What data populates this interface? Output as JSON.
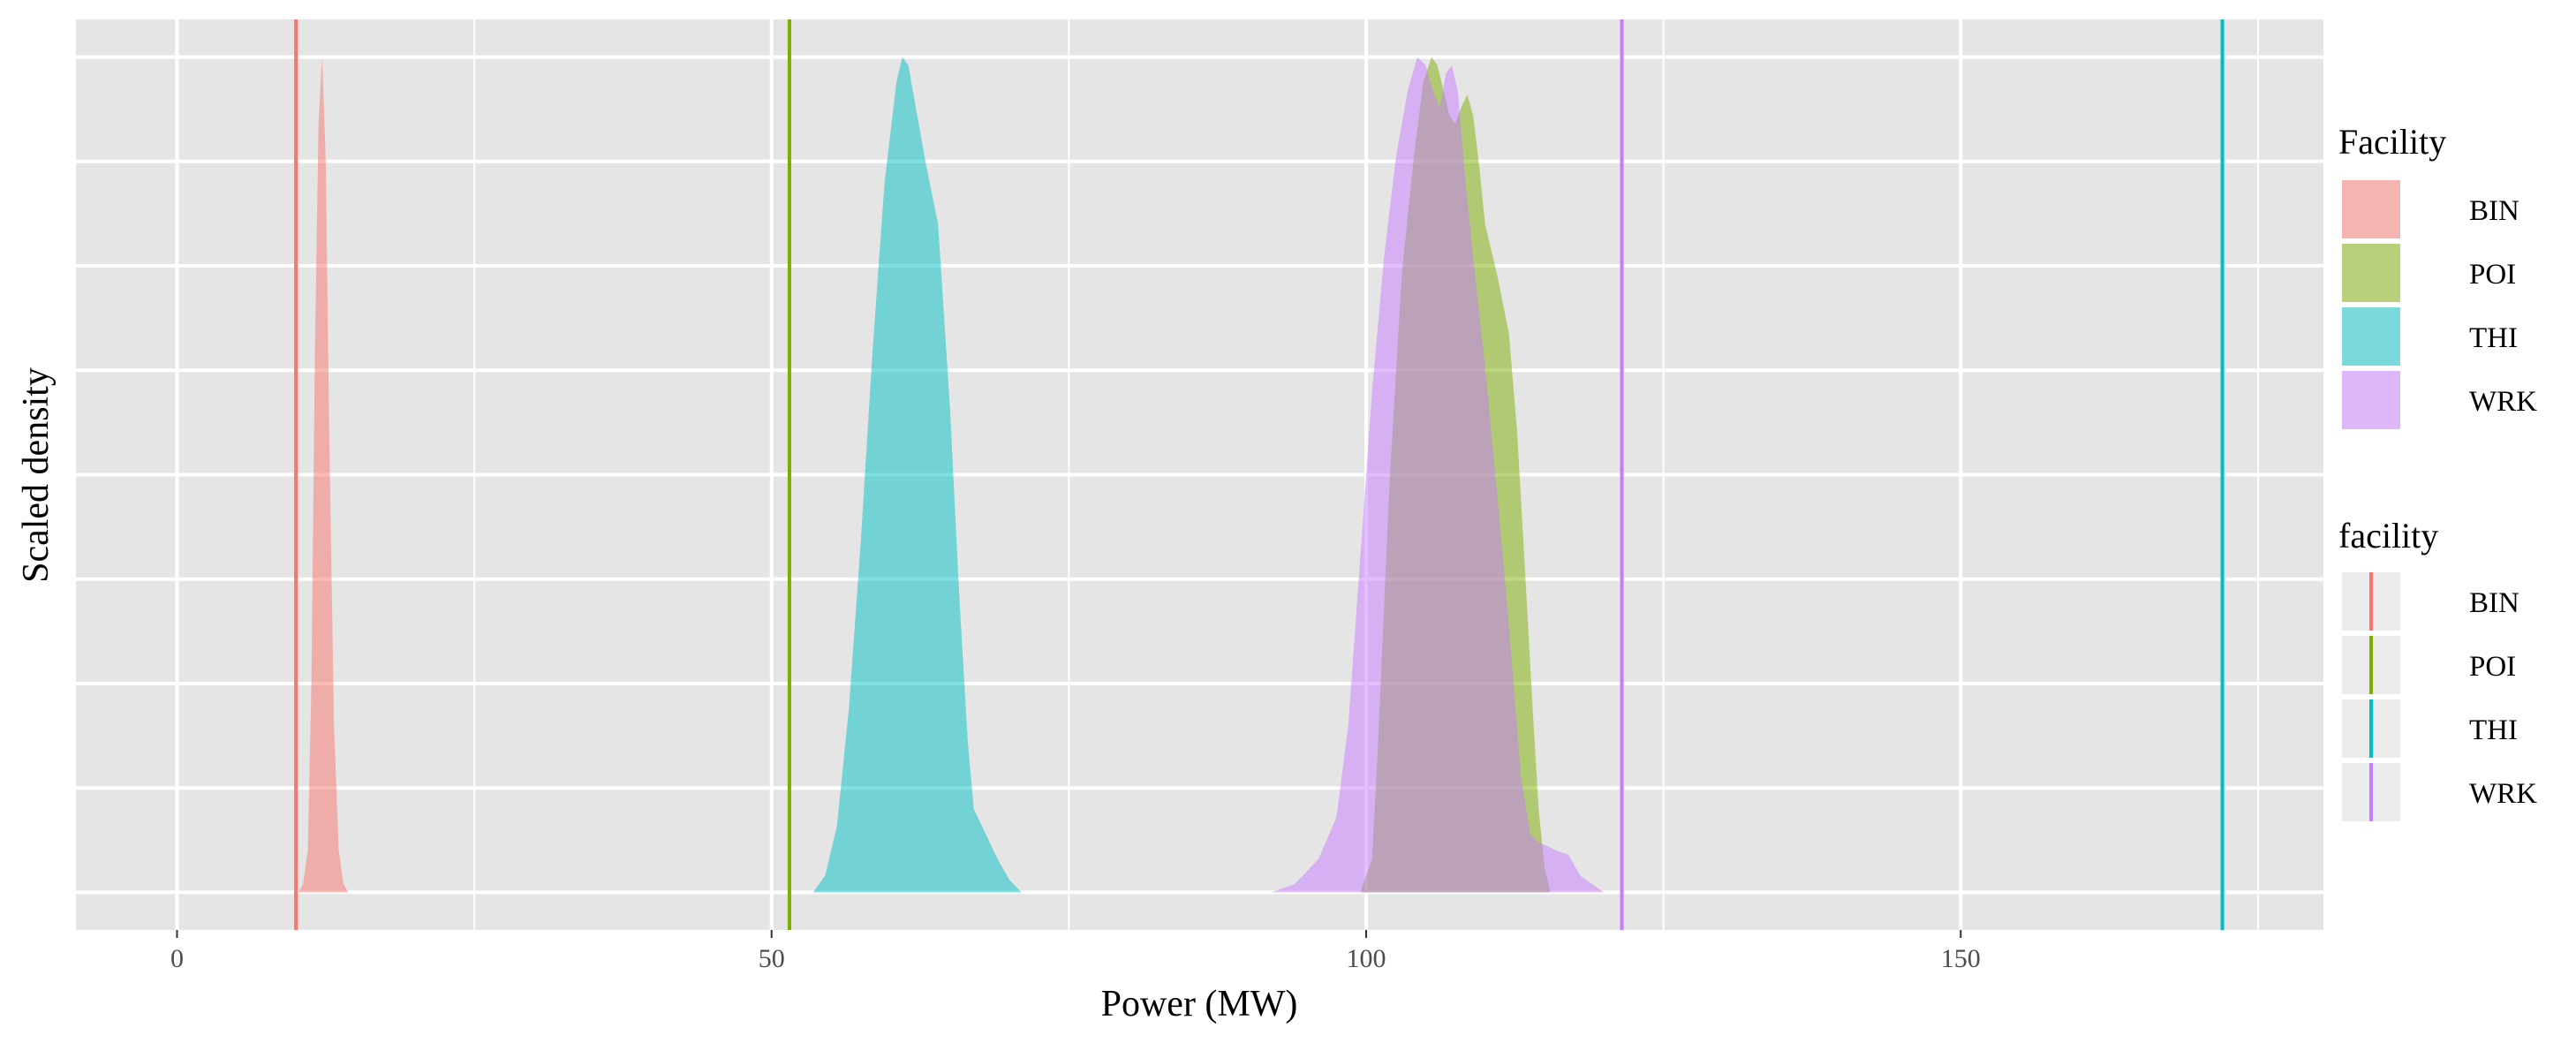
{
  "chart_data": {
    "type": "area",
    "xlabel": "Power (MW)",
    "ylabel": "Scaled density",
    "xlim": [
      -8.5,
      180.5
    ],
    "ylim": [
      -0.045,
      1.045
    ],
    "x_ticks": [
      0,
      50,
      100,
      150
    ],
    "x_tick_labels": [
      "0",
      "50",
      "100",
      "150"
    ],
    "x_minor_ticks": [
      25,
      75,
      125,
      175
    ],
    "y_gridlines": [
      0,
      0.125,
      0.25,
      0.375,
      0.5,
      0.625,
      0.75,
      0.875,
      1
    ],
    "y_tick_labels_shown": false,
    "grid": true,
    "panel_background": "#e5e5e5",
    "legend_placement": "right",
    "series": [
      {
        "name": "BIN",
        "color": "#f8766d",
        "x": [
          10.2,
          10.6,
          11.0,
          11.3,
          11.6,
          11.9,
          12.2,
          12.5,
          12.8,
          13.2,
          13.6,
          14.0,
          14.4
        ],
        "y": [
          0,
          0.01,
          0.05,
          0.25,
          0.65,
          0.92,
          1.0,
          0.88,
          0.55,
          0.2,
          0.05,
          0.01,
          0
        ]
      },
      {
        "name": "POI",
        "color": "#7cae00",
        "x": [
          99.5,
          100.5,
          101.0,
          102.0,
          103.0,
          104.0,
          104.8,
          105.5,
          106.0,
          106.5,
          107.0,
          107.5,
          108.0,
          108.5,
          109.0,
          109.5,
          110.0,
          111.0,
          112.0,
          112.7,
          113.3,
          114.0,
          114.5,
          115.0,
          115.5
        ],
        "y": [
          0,
          0.04,
          0.18,
          0.5,
          0.74,
          0.88,
          0.97,
          1.0,
          0.99,
          0.96,
          0.93,
          0.92,
          0.94,
          0.955,
          0.93,
          0.87,
          0.8,
          0.74,
          0.67,
          0.55,
          0.4,
          0.22,
          0.1,
          0.03,
          0
        ]
      },
      {
        "name": "THI",
        "color": "#00bfc4",
        "x": [
          53.5,
          54.5,
          55.5,
          56.5,
          57.5,
          58.5,
          59.5,
          60.5,
          61.0,
          61.5,
          62.0,
          63.0,
          64.0,
          65.0,
          65.8,
          66.5,
          67.0,
          68.0,
          69.0,
          70.0,
          71.0
        ],
        "y": [
          0,
          0.02,
          0.08,
          0.22,
          0.42,
          0.65,
          0.85,
          0.97,
          1.0,
          0.99,
          0.95,
          0.87,
          0.8,
          0.58,
          0.35,
          0.18,
          0.1,
          0.07,
          0.04,
          0.015,
          0
        ]
      },
      {
        "name": "WRK",
        "color": "#c77cff",
        "x": [
          92.0,
          94.0,
          96.0,
          97.5,
          98.5,
          99.5,
          100.5,
          101.5,
          102.5,
          103.5,
          104.3,
          105.0,
          105.6,
          106.2,
          106.7,
          107.2,
          107.7,
          108.3,
          109.0,
          110.0,
          111.0,
          112.0,
          113.0,
          113.8,
          114.5,
          115.3,
          116.0,
          117.0,
          118.0,
          119.0,
          120.0
        ],
        "y": [
          0,
          0.01,
          0.04,
          0.09,
          0.2,
          0.4,
          0.6,
          0.76,
          0.88,
          0.96,
          1.0,
          0.99,
          0.96,
          0.94,
          0.98,
          0.99,
          0.96,
          0.86,
          0.76,
          0.63,
          0.48,
          0.32,
          0.14,
          0.07,
          0.06,
          0.055,
          0.05,
          0.045,
          0.02,
          0.01,
          0
        ]
      }
    ],
    "vlines": [
      {
        "name": "BIN",
        "x": 10.0,
        "color": "#f8766d"
      },
      {
        "name": "POI",
        "x": 51.5,
        "color": "#7cae00"
      },
      {
        "name": "THI",
        "x": 172.0,
        "color": "#00bfc4"
      },
      {
        "name": "WRK",
        "x": 121.5,
        "color": "#c77cff"
      }
    ],
    "legend_fill": {
      "title": "Facility",
      "entries": [
        "BIN",
        "POI",
        "THI",
        "WRK"
      ]
    },
    "legend_line": {
      "title": "facility",
      "entries": [
        "BIN",
        "POI",
        "THI",
        "WRK"
      ]
    }
  }
}
